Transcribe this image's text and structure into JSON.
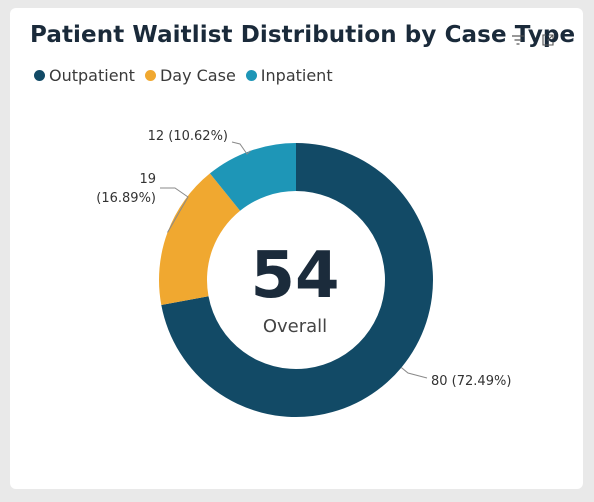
{
  "title": "Patient Waitlist Distribution by Case Type",
  "toolbar": {
    "filter_icon": "filter-icon",
    "expand_icon": "expand-icon"
  },
  "center": {
    "value": "54",
    "label": "Overall"
  },
  "chart_data": {
    "type": "pie",
    "title": "Patient Waitlist Distribution by Case Type",
    "legend_position": "top-left",
    "slices": [
      {
        "name": "Outpatient",
        "value": 80,
        "percent": "72.49%",
        "color": "#124a66",
        "label_lines": [
          "80 (72.49%)"
        ]
      },
      {
        "name": "Day Case",
        "value": 19,
        "percent": "16.89%",
        "color": "#f0a830",
        "label_lines": [
          "19",
          "(16.89%)"
        ]
      },
      {
        "name": "Inpatient",
        "value": 12,
        "percent": "10.62%",
        "color": "#1e96b7",
        "label_lines": [
          "12 (10.62%)"
        ]
      }
    ]
  }
}
